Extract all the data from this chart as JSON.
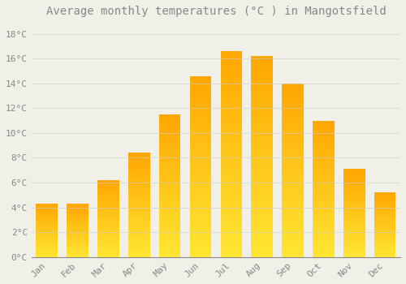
{
  "title": "Average monthly temperatures (°C ) in Mangotsfield",
  "months": [
    "Jan",
    "Feb",
    "Mar",
    "Apr",
    "May",
    "Jun",
    "Jul",
    "Aug",
    "Sep",
    "Oct",
    "Nov",
    "Dec"
  ],
  "values": [
    4.3,
    4.3,
    6.2,
    8.4,
    11.5,
    14.6,
    16.6,
    16.2,
    14.0,
    11.0,
    7.1,
    5.2
  ],
  "bar_color_main": "#FFA500",
  "bar_color_light": "#FFD060",
  "background_color": "#F0F0E8",
  "grid_color": "#CCCCCC",
  "text_color": "#888888",
  "ylim": [
    0,
    19
  ],
  "yticks": [
    0,
    2,
    4,
    6,
    8,
    10,
    12,
    14,
    16,
    18
  ],
  "title_fontsize": 10,
  "tick_fontsize": 8,
  "figsize": [
    5.0,
    3.5
  ],
  "dpi": 100,
  "bar_width": 0.7,
  "label_rotation": 45
}
